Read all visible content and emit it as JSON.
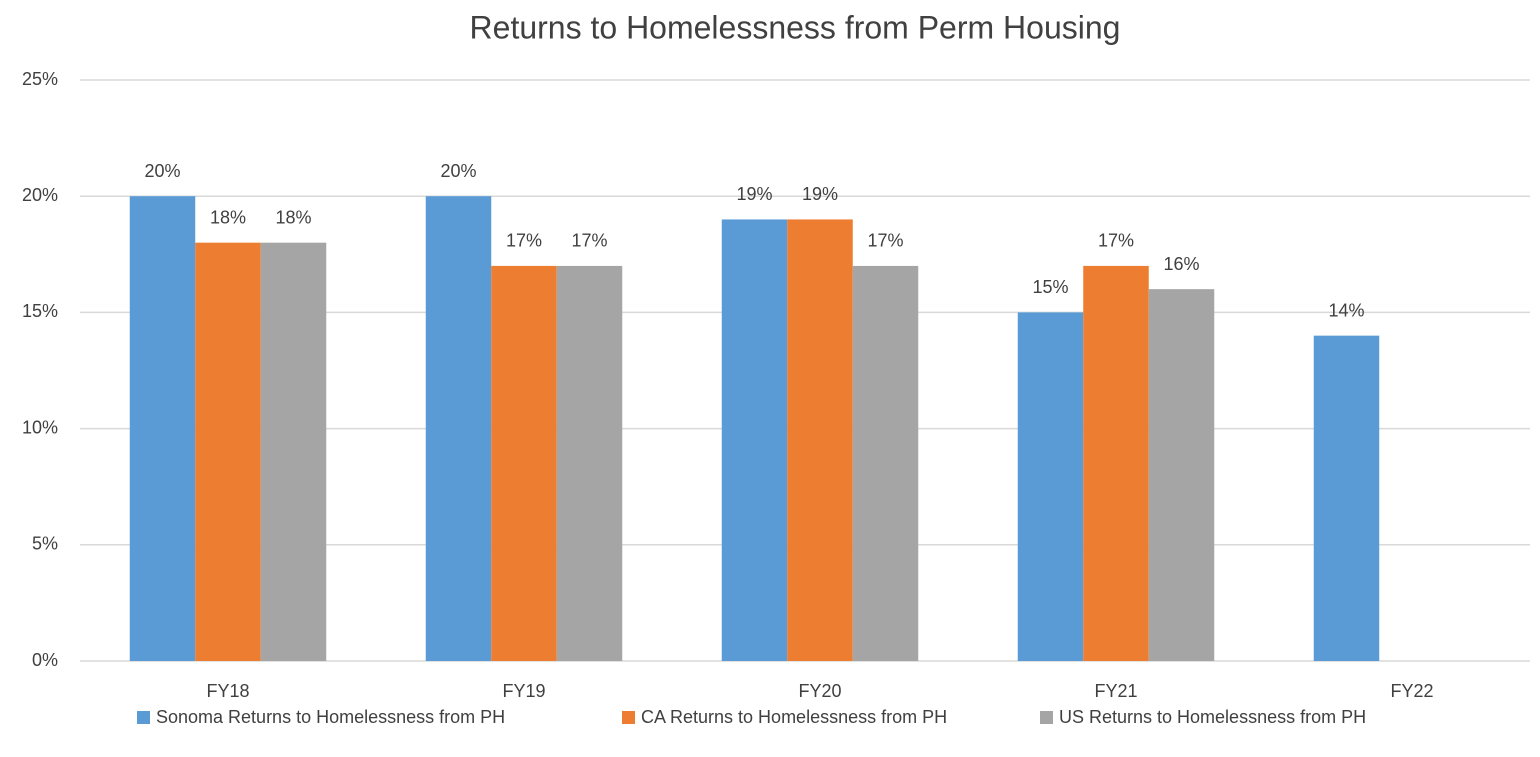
{
  "chart_data": {
    "type": "bar",
    "title": "Returns to Homelessness from Perm Housing",
    "categories": [
      "FY18",
      "FY19",
      "FY20",
      "FY21",
      "FY22"
    ],
    "series": [
      {
        "name": "Sonoma Returns to Homelessness from PH",
        "color": "#5b9bd5",
        "values": [
          20,
          20,
          19,
          15,
          14
        ],
        "value_labels": [
          "20%",
          "20%",
          "19%",
          "15%",
          "14%"
        ]
      },
      {
        "name": "CA Returns to Homelessness from PH",
        "color": "#ed7d31",
        "values": [
          18,
          17,
          19,
          17,
          null
        ],
        "value_labels": [
          "18%",
          "17%",
          "19%",
          "17%",
          null
        ]
      },
      {
        "name": "US Returns to Homelessness from PH",
        "color": "#a5a5a5",
        "values": [
          18,
          17,
          17,
          16,
          null
        ],
        "value_labels": [
          "18%",
          "17%",
          "17%",
          "16%",
          null
        ]
      }
    ],
    "ylim": [
      0,
      25
    ],
    "yticks": [
      {
        "value": 0,
        "label": "0%"
      },
      {
        "value": 5,
        "label": "5%"
      },
      {
        "value": 10,
        "label": "10%"
      },
      {
        "value": 15,
        "label": "15%"
      },
      {
        "value": 20,
        "label": "20%"
      },
      {
        "value": 25,
        "label": "25%"
      }
    ],
    "grid": true,
    "legend": "bottom"
  }
}
